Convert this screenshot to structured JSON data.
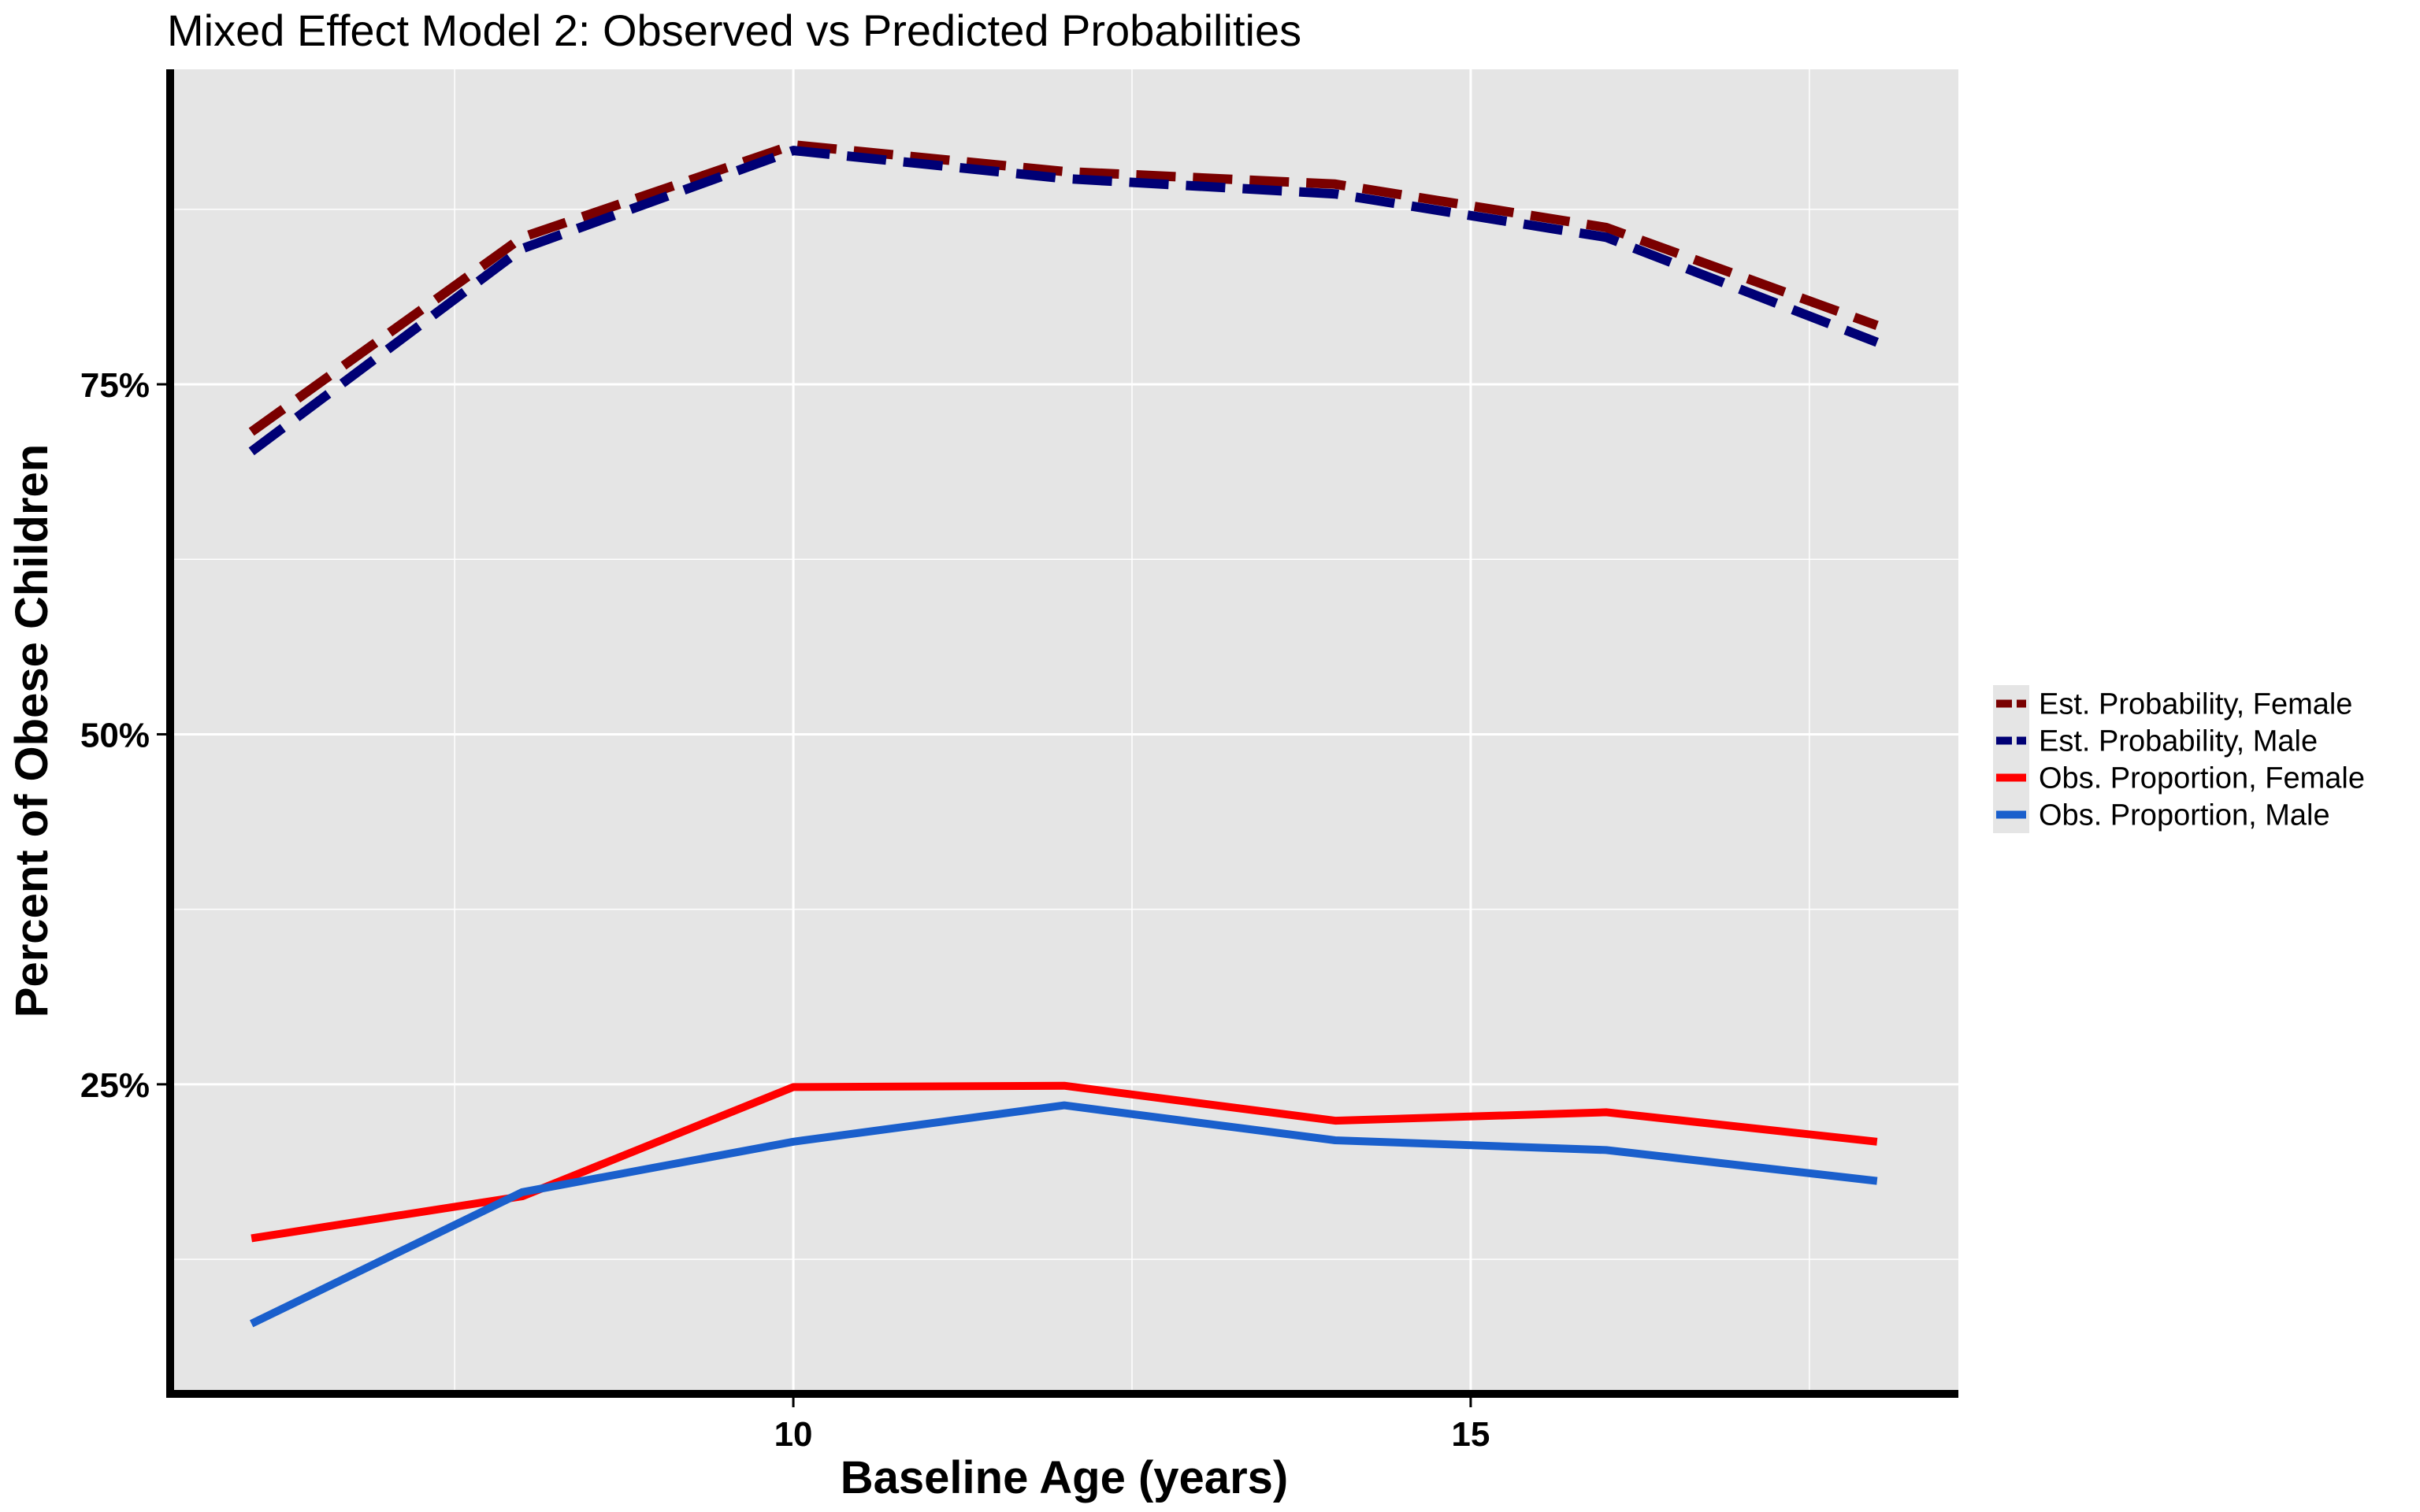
{
  "chart_data": {
    "type": "line",
    "title": "Mixed Effect Model 2: Observed vs Predicted Probabilities",
    "xlabel": "Baseline Age (years)",
    "ylabel": "Percent of Obese Children",
    "xlim": [
      5.4,
      18.6
    ],
    "ylim": [
      0.03,
      0.975
    ],
    "x_ticks": [
      10,
      15
    ],
    "x_tick_labels": [
      "10",
      "15"
    ],
    "y_ticks": [
      0.25,
      0.5,
      0.75
    ],
    "y_tick_labels": [
      "25%",
      "50%",
      "75%"
    ],
    "x_minor_grid": [
      7.5,
      12.5,
      17.5
    ],
    "y_minor_grid": [
      0.125,
      0.375,
      0.625,
      0.875
    ],
    "grid": true,
    "background": "#e5e5e5",
    "legend_position": "right",
    "x": [
      6,
      8,
      10,
      12,
      14,
      16,
      18
    ],
    "series": [
      {
        "name": "Est. Probability, Female",
        "color": "#7a0000",
        "dash": true,
        "values": [
          0.716,
          0.855,
          0.921,
          0.902,
          0.893,
          0.862,
          0.792
        ]
      },
      {
        "name": "Est. Probability, Male",
        "color": "#000075",
        "dash": true,
        "values": [
          0.702,
          0.847,
          0.917,
          0.897,
          0.886,
          0.855,
          0.78
        ]
      },
      {
        "name": "Obs. Proportion, Female",
        "color": "#ff0000",
        "dash": false,
        "values": [
          0.14,
          0.17,
          0.248,
          0.249,
          0.224,
          0.23,
          0.209
        ]
      },
      {
        "name": "Obs. Proportion, Male",
        "color": "#1a5fcc",
        "dash": false,
        "values": [
          0.079,
          0.173,
          0.209,
          0.235,
          0.21,
          0.203,
          0.181
        ]
      }
    ]
  }
}
